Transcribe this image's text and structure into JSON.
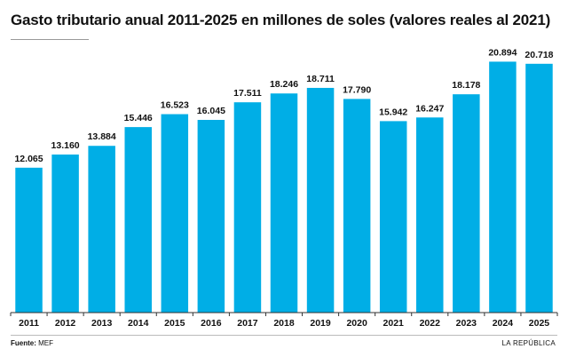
{
  "chart_data": {
    "type": "bar",
    "title": "Gasto tributario anual 2011-2025 en millones de soles (valores reales al 2021)",
    "categories": [
      "2011",
      "2012",
      "2013",
      "2014",
      "2015",
      "2016",
      "2017",
      "2018",
      "2019",
      "2020",
      "2021",
      "2022",
      "2023",
      "2024",
      "2025"
    ],
    "values": [
      12065,
      13160,
      13884,
      15446,
      16523,
      16045,
      17511,
      18246,
      18711,
      17790,
      15942,
      16247,
      18178,
      20894,
      20718
    ],
    "value_labels": [
      "12.065",
      "13.160",
      "13.884",
      "15.446",
      "16.523",
      "16.045",
      "17.511",
      "18.246",
      "18.711",
      "17.790",
      "15.942",
      "16.247",
      "18.178",
      "20.894",
      "20.718"
    ],
    "xlabel": "",
    "ylabel": "",
    "ylim": [
      0,
      21000
    ],
    "grid": false,
    "bar_color": "#00aee6"
  },
  "footer": {
    "source_label": "Fuente:",
    "source_value": "MEF",
    "brand": "LA REPÚBLICA"
  }
}
